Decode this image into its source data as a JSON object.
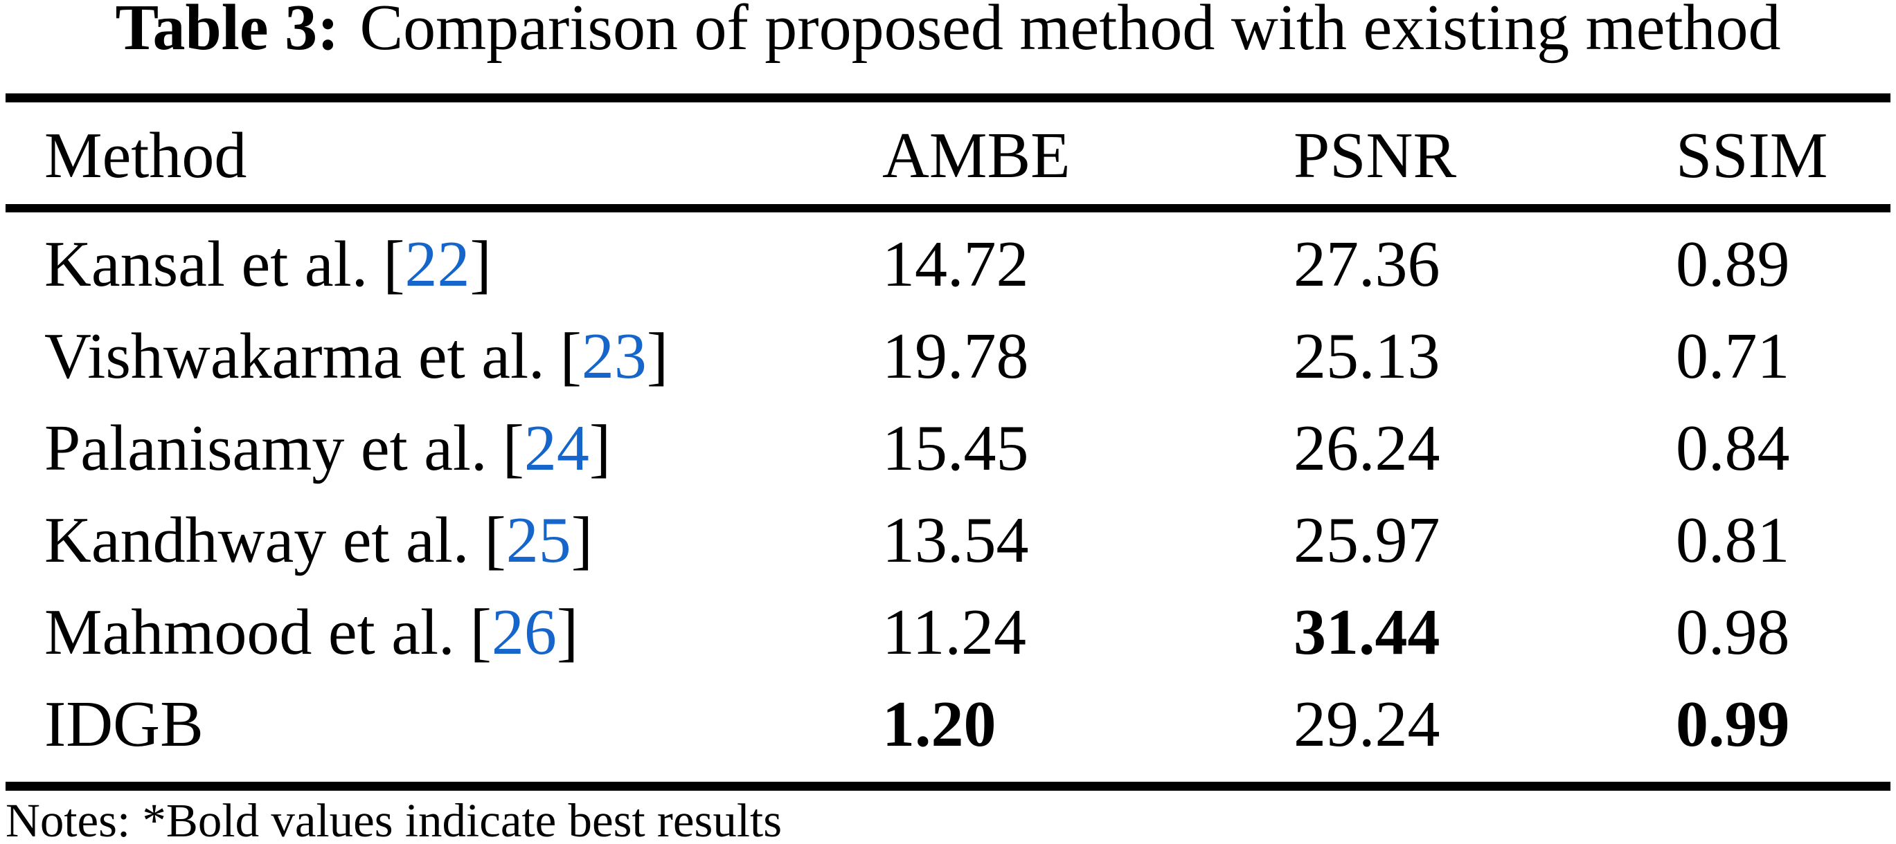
{
  "table": {
    "caption": {
      "label": "Table 3:",
      "text": "Comparison of proposed method with existing method"
    },
    "columns": [
      "Method",
      "AMBE",
      "PSNR",
      "SSIM"
    ],
    "rows": [
      {
        "method": "Kansal et al.",
        "cite": "22",
        "ambe": "14.72",
        "psnr": "27.36",
        "ssim": "0.89",
        "bold": []
      },
      {
        "method": "Vishwakarma et al.",
        "cite": "23",
        "ambe": "19.78",
        "psnr": "25.13",
        "ssim": "0.71",
        "bold": []
      },
      {
        "method": "Palanisamy et al.",
        "cite": "24",
        "ambe": "15.45",
        "psnr": "26.24",
        "ssim": "0.84",
        "bold": []
      },
      {
        "method": "Kandhway et al.",
        "cite": "25",
        "ambe": "13.54",
        "psnr": "25.97",
        "ssim": "0.81",
        "bold": []
      },
      {
        "method": "Mahmood et al.",
        "cite": "26",
        "ambe": "11.24",
        "psnr": "31.44",
        "ssim": "0.98",
        "bold": [
          "psnr"
        ]
      },
      {
        "method": "IDGB",
        "cite": null,
        "ambe": "1.20",
        "psnr": "29.24",
        "ssim": "0.99",
        "bold": [
          "ambe",
          "ssim"
        ]
      }
    ],
    "brackets": {
      "open": "[",
      "close": "]"
    },
    "notes": "Notes: *Bold values indicate best results",
    "colors": {
      "citation": "#1565CB",
      "text": "#000000",
      "background": "#FFFFFF"
    }
  }
}
